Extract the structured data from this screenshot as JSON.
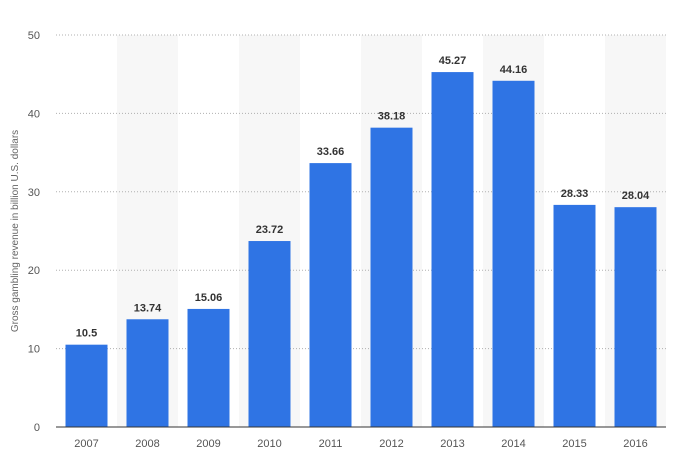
{
  "chart_data": {
    "type": "bar",
    "title": "",
    "xlabel": "",
    "ylabel": "Gross gambling revenue in billion U.S. dollars",
    "categories": [
      "2007",
      "2008",
      "2009",
      "2010",
      "2011",
      "2012",
      "2013",
      "2014",
      "2015",
      "2016"
    ],
    "values": [
      10.5,
      13.74,
      15.06,
      23.72,
      33.66,
      38.18,
      45.27,
      44.16,
      28.33,
      28.04
    ],
    "value_labels": [
      "10.5",
      "13.74",
      "15.06",
      "23.72",
      "33.66",
      "38.18",
      "45.27",
      "44.16",
      "28.33",
      "28.04"
    ],
    "ylim": [
      0,
      50
    ],
    "yticks": [
      "0",
      "10",
      "20",
      "30",
      "40",
      "50"
    ],
    "grid": true,
    "legend": "none",
    "bar_color": "#2f74e4",
    "band_color": "#f7f7f7",
    "grid_color": "#b0b0b0"
  }
}
